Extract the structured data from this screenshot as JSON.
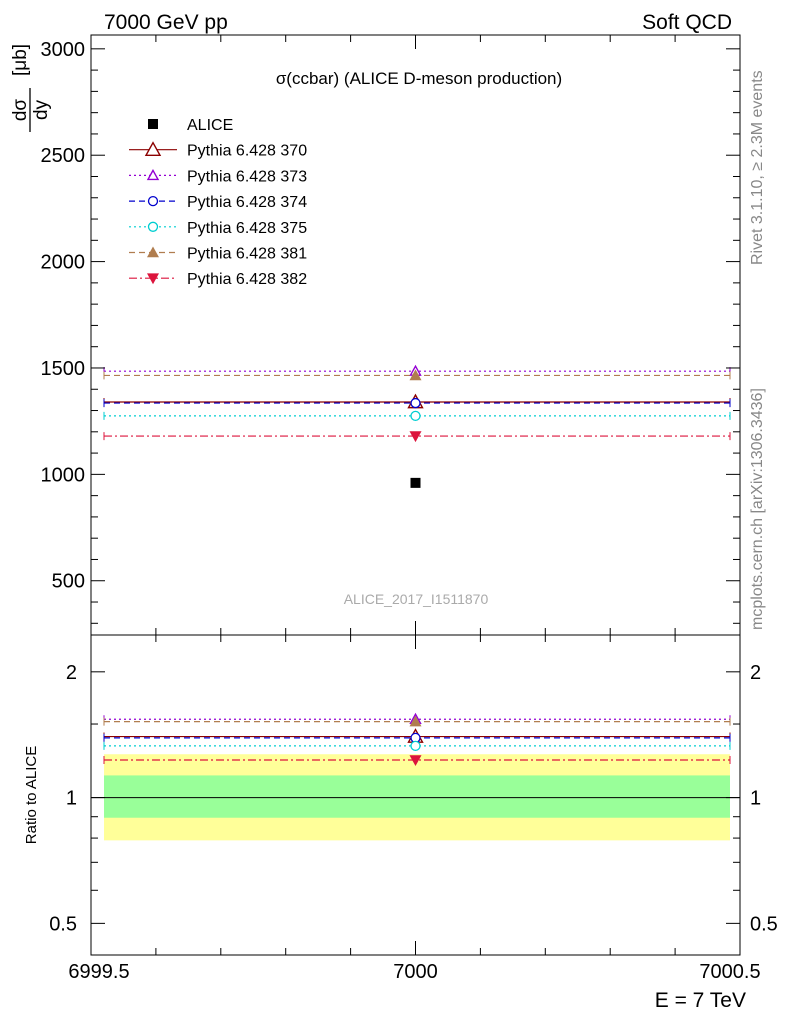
{
  "header": {
    "left": "7000 GeV pp",
    "right": "Soft QCD"
  },
  "side_text": {
    "rivet": "Rivet 3.1.10, ≥ 2.3M events",
    "mcplots": "mcplots.cern.ch [arXiv:1306.3436]"
  },
  "colors": {
    "band_inner": "#99ff99",
    "band_outer": "#ffff99"
  },
  "chart_data": [
    {
      "type": "scatter",
      "title": "σ(ccbar) (ALICE D-meson production)",
      "ylabel_num": "dσ",
      "ylabel_den": "dy",
      "ylabel_unit": "[μb]",
      "watermark": "ALICE_2017_I1511870",
      "xlim": [
        6999.5,
        7000.5
      ],
      "ylim": [
        245,
        3065
      ],
      "yticks": [
        500,
        1000,
        1500,
        2000,
        2500,
        3000
      ],
      "ytick_labels": [
        "500",
        "1000",
        "1500",
        "2000",
        "2500",
        "3000"
      ],
      "legend_position": "top-left",
      "data": {
        "name": "ALICE",
        "x": 7000,
        "y": 960,
        "color": "#000000",
        "marker": "square-filled"
      },
      "series": [
        {
          "name": "Pythia 6.428 370",
          "y": 1340,
          "color": "#8b0000",
          "marker": "triangle-open",
          "dash": "solid"
        },
        {
          "name": "Pythia 6.428 373",
          "y": 1485,
          "color": "#9400d3",
          "marker": "triangle-open-small",
          "dash": "dotted"
        },
        {
          "name": "Pythia 6.428 374",
          "y": 1335,
          "color": "#0000cd",
          "marker": "circle-open",
          "dash": "dashed"
        },
        {
          "name": "Pythia 6.428 375",
          "y": 1275,
          "color": "#00ced1",
          "marker": "circle-open",
          "dash": "dotted"
        },
        {
          "name": "Pythia 6.428 381",
          "y": 1465,
          "color": "#b07d4f",
          "marker": "triangle-filled",
          "dash": "dashed"
        },
        {
          "name": "Pythia 6.428 382",
          "y": 1180,
          "color": "#dc143c",
          "marker": "triangle-down-filled",
          "dash": "dashdot"
        }
      ]
    },
    {
      "type": "scatter",
      "ylabel": "Ratio to ALICE",
      "xlabel": "E = 7 TeV",
      "xlim": [
        6999.5,
        7000.5
      ],
      "xticks": [
        6999.5,
        7000,
        7000.5
      ],
      "xtick_labels": [
        "6999.5",
        "7000",
        "7000.5"
      ],
      "ylim": [
        0.42,
        2.45
      ],
      "log_y": true,
      "yticks": [
        0.5,
        1,
        2
      ],
      "ytick_labels": [
        "0.5",
        "1",
        "2"
      ],
      "bands": {
        "inner": [
          0.895,
          1.13
        ],
        "outer": [
          0.79,
          1.27
        ]
      },
      "series": [
        {
          "name": "Pythia 6.428 370",
          "y": 1.4
        },
        {
          "name": "Pythia 6.428 373",
          "y": 1.54
        },
        {
          "name": "Pythia 6.428 374",
          "y": 1.39
        },
        {
          "name": "Pythia 6.428 375",
          "y": 1.33
        },
        {
          "name": "Pythia 6.428 381",
          "y": 1.52
        },
        {
          "name": "Pythia 6.428 382",
          "y": 1.23
        }
      ]
    }
  ]
}
